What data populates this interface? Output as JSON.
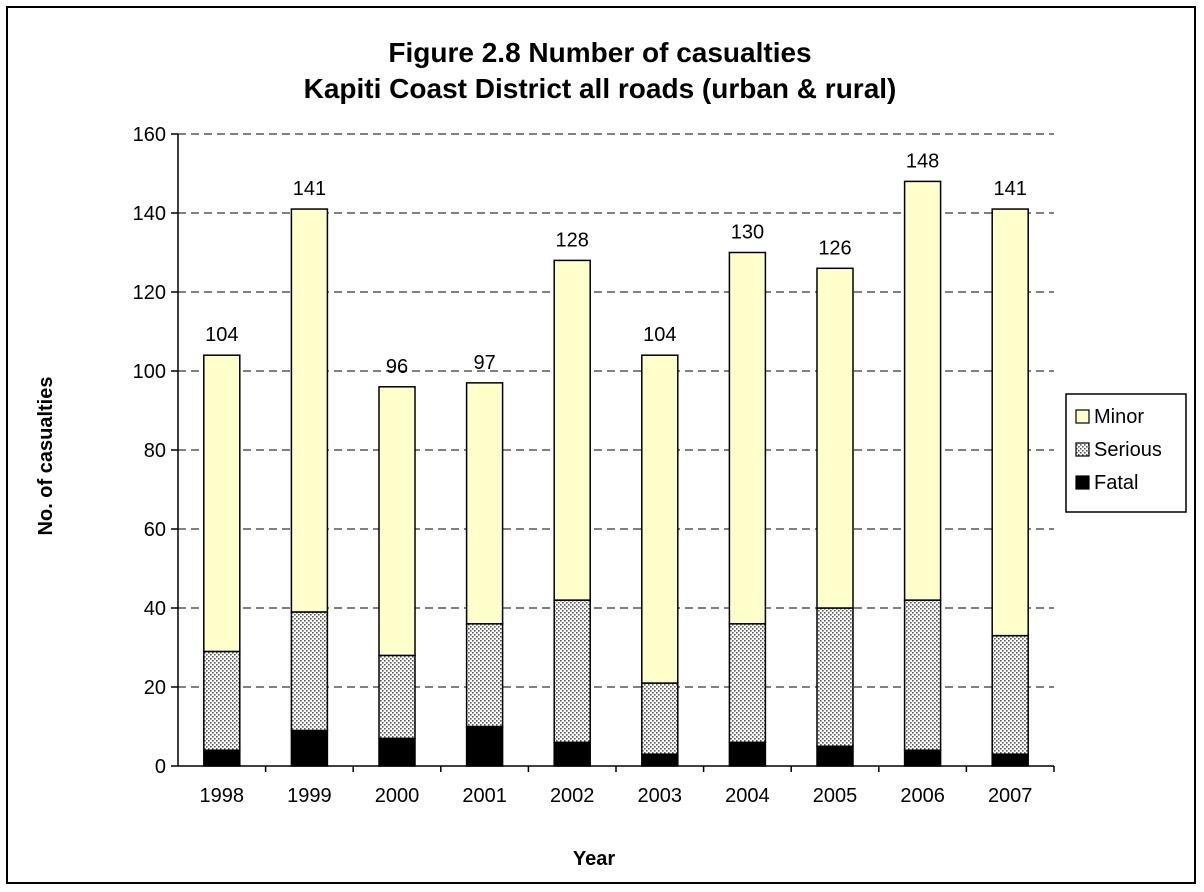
{
  "chart_data": {
    "type": "bar",
    "stacked": true,
    "title": "Figure 2.8 Number of casualties",
    "subtitle": "Kapiti Coast District all roads (urban & rural)",
    "xlabel": "Year",
    "ylabel": "No. of casualties",
    "ylim": [
      0,
      160
    ],
    "yticks": [
      0,
      20,
      40,
      60,
      80,
      100,
      120,
      140,
      160
    ],
    "grid": "horizontal-dashed",
    "legend_position": "right",
    "categories": [
      "1998",
      "1999",
      "2000",
      "2001",
      "2002",
      "2003",
      "2004",
      "2005",
      "2006",
      "2007"
    ],
    "series": [
      {
        "name": "Fatal",
        "fill": "solid",
        "color": "#000000",
        "values": [
          4,
          9,
          7,
          10,
          6,
          3,
          6,
          5,
          4,
          3
        ]
      },
      {
        "name": "Serious",
        "fill": "dotted",
        "color": "#c8c8c8",
        "values": [
          25,
          30,
          21,
          26,
          36,
          18,
          30,
          35,
          38,
          30
        ]
      },
      {
        "name": "Minor",
        "fill": "solid",
        "color": "#ffffcc",
        "values": [
          75,
          102,
          68,
          61,
          86,
          83,
          94,
          86,
          106,
          108
        ]
      }
    ],
    "legend_order": [
      "Minor",
      "Serious",
      "Fatal"
    ],
    "totals": [
      "104",
      "141",
      "96",
      "97",
      "128",
      "104",
      "130",
      "126",
      "148",
      "141"
    ]
  }
}
